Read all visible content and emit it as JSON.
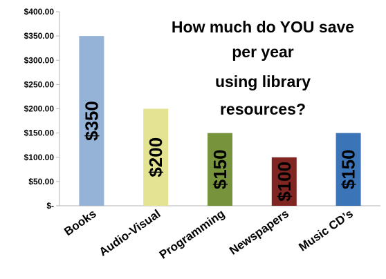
{
  "chart_data": {
    "type": "bar",
    "title_lines": [
      "How much do YOU save",
      "per year",
      "using library",
      "resources?"
    ],
    "categories": [
      "Books",
      "Audio-Visual",
      "Programming",
      "Newspapers",
      "Music CD’s"
    ],
    "values": [
      350,
      200,
      150,
      100,
      150
    ],
    "data_labels": [
      "$350",
      "$200",
      "$150",
      "$100",
      "$150"
    ],
    "bar_colors": [
      "#95b3d7",
      "#e3e391",
      "#77933c",
      "#7f2622",
      "#3b74b7"
    ],
    "y_ticks": [
      "$-",
      "$50.00",
      "$100.00",
      "$150.00",
      "$200.00",
      "$250.00",
      "$300.00",
      "$350.00",
      "$400.00"
    ],
    "ylim": [
      0,
      400
    ],
    "xlabel": "",
    "ylabel": "",
    "grid": false,
    "legend": "none"
  }
}
